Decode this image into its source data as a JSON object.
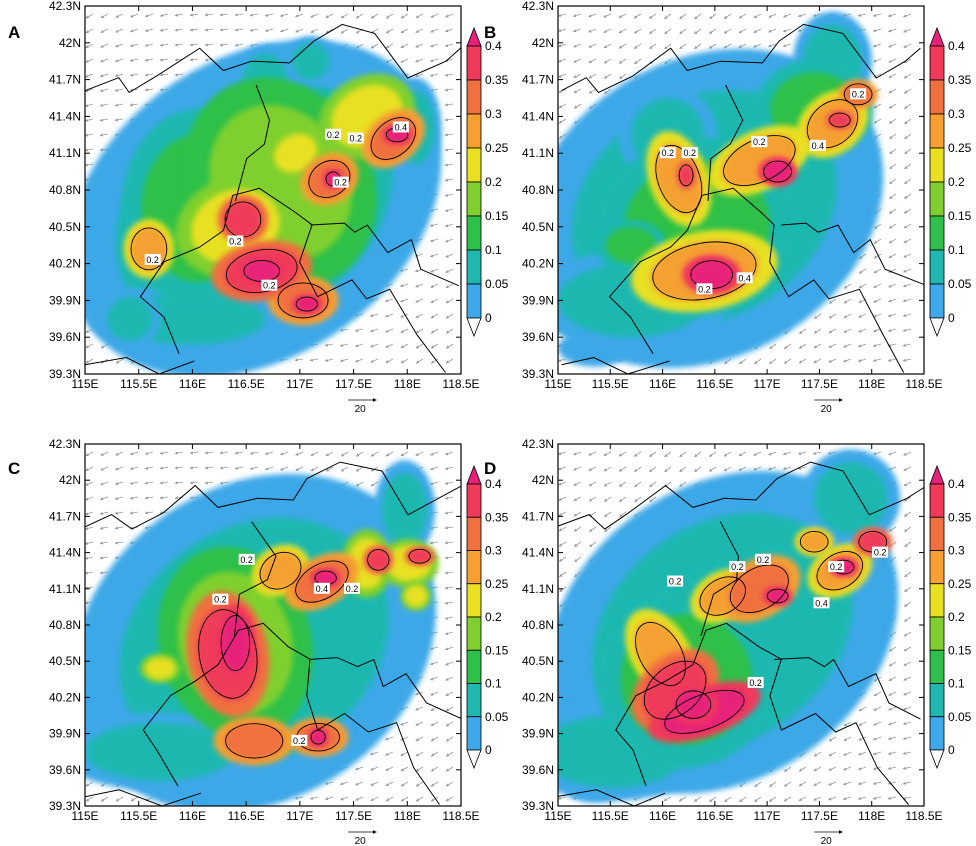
{
  "colors": {
    "levels": [
      "#ffffff",
      "#3ea8e8",
      "#1fb8b0",
      "#2ec04a",
      "#7fd02e",
      "#e8e020",
      "#f5a030",
      "#f07040",
      "#f03a5a",
      "#e8207a"
    ],
    "contour": "#000000",
    "wind_vector": "#9a9a9a",
    "border": "#000000"
  },
  "colorbar_labels": [
    "0.4",
    "0.35",
    "0.3",
    "0.25",
    "0.2",
    "0.15",
    "0.1",
    "0.05",
    "0"
  ],
  "x_ticks": [
    "115E",
    "115.5E",
    "116E",
    "116.5E",
    "117E",
    "117.5E",
    "118E",
    "118.5E"
  ],
  "y_ticks": [
    "42.3N",
    "42N",
    "41.7N",
    "41.4N",
    "41.1N",
    "40.8N",
    "40.5N",
    "40.2N",
    "39.9N",
    "39.6N",
    "39.3N"
  ],
  "ref_vector_label": "20",
  "panels": [
    {
      "letter": "A",
      "labels": [
        "0.2",
        "0.2",
        "0.2",
        "0.2",
        "0.2",
        "0.4",
        "0.2"
      ]
    },
    {
      "letter": "B",
      "labels": [
        "0.2",
        "0.2",
        "0.2",
        "0.4",
        "0.2",
        "0.4",
        "0.2"
      ]
    },
    {
      "letter": "C",
      "labels": [
        "0.2",
        "0.2",
        "0.4",
        "0.2",
        "0.2"
      ]
    },
    {
      "letter": "D",
      "labels": [
        "0.2",
        "0.2",
        "0.2",
        "0.4",
        "0.2",
        "0.2",
        "0.2"
      ]
    }
  ]
}
